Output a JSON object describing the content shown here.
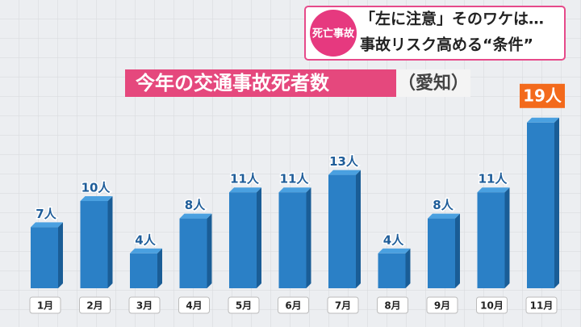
{
  "header": {
    "badge": "死亡事故",
    "line1": "「左に注意」そのワケは…",
    "line2": "事故リスク高める“条件”"
  },
  "chart_data": {
    "type": "bar",
    "title": "今年の交通事故死者数",
    "subtitle": "（愛知）",
    "categories": [
      "1月",
      "2月",
      "3月",
      "4月",
      "5月",
      "6月",
      "7月",
      "8月",
      "9月",
      "10月",
      "11月"
    ],
    "values": [
      7,
      10,
      4,
      8,
      11,
      11,
      13,
      4,
      8,
      11,
      19
    ],
    "value_labels": [
      "7人",
      "10人",
      "4人",
      "8人",
      "11人",
      "11人",
      "13人",
      "4人",
      "8人",
      "11人",
      "19人"
    ],
    "color": "#2b80c6"
  }
}
